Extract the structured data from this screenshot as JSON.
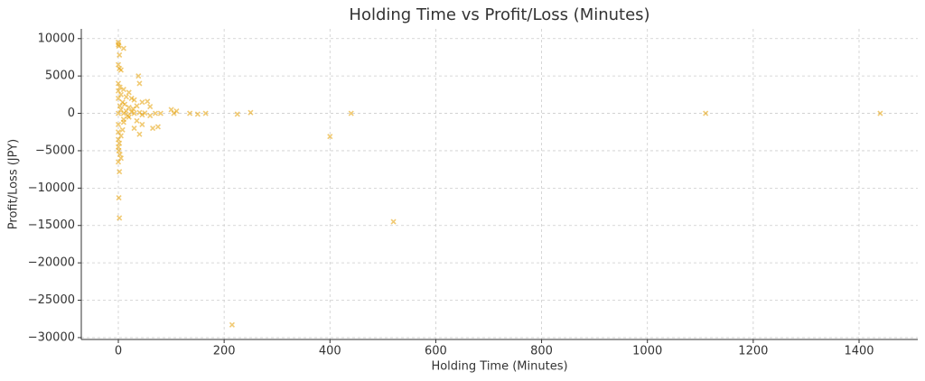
{
  "chart_data": {
    "type": "scatter",
    "title": "Holding Time vs Profit/Loss (Minutes)",
    "x_label": "Holding Time (Minutes)",
    "y_label": "Profit/Loss (JPY)",
    "color": "#e69f00",
    "grid": true,
    "xlim": [
      -70,
      1511
    ],
    "ylim": [
      -30250,
      11300
    ],
    "xticks": [
      0,
      200,
      400,
      600,
      800,
      1000,
      1200,
      1400
    ],
    "yticks": [
      {
        "value": -30000,
        "label": "−30000"
      },
      {
        "value": -25000,
        "label": "−25000"
      },
      {
        "value": -20000,
        "label": "−20000"
      },
      {
        "value": -15000,
        "label": "−15000"
      },
      {
        "value": -10000,
        "label": "−10000"
      },
      {
        "value": -5000,
        "label": "−5000"
      },
      0,
      5000,
      10000
    ],
    "x": [
      0,
      0,
      1,
      10,
      2,
      0,
      2,
      5,
      38,
      40,
      0,
      3,
      10,
      0,
      20,
      5,
      15,
      25,
      0,
      30,
      55,
      45,
      8,
      12,
      35,
      60,
      20,
      5,
      15,
      25,
      40,
      50,
      70,
      80,
      100,
      110,
      105,
      135,
      150,
      165,
      225,
      250,
      440,
      1110,
      1440,
      0,
      10,
      30,
      45,
      60,
      20,
      10,
      35,
      45,
      65,
      75,
      30,
      40,
      0,
      0,
      5,
      0,
      2,
      0,
      1,
      3,
      5,
      0,
      2,
      1,
      2,
      400,
      520,
      215,
      10,
      18,
      28,
      3,
      8
    ],
    "values": [
      9500,
      9200,
      9000,
      8700,
      7800,
      6500,
      6000,
      5800,
      5000,
      4000,
      4000,
      3500,
      3200,
      3000,
      2800,
      2500,
      2200,
      2000,
      2000,
      1800,
      1600,
      1500,
      1500,
      1200,
      1000,
      900,
      800,
      500,
      300,
      200,
      100,
      50,
      0,
      0,
      500,
      300,
      0,
      0,
      -100,
      0,
      -100,
      100,
      0,
      0,
      0,
      0,
      0,
      0,
      -200,
      -300,
      -500,
      -800,
      -1000,
      -1500,
      -2000,
      -1800,
      -2000,
      -2800,
      -1500,
      -2500,
      -3000,
      -3500,
      -4000,
      -4500,
      -5000,
      -5500,
      -6000,
      -6500,
      -7800,
      -11300,
      -14000,
      -3100,
      -14500,
      -28300,
      -1200,
      -300,
      600,
      1000,
      -2200
    ]
  }
}
